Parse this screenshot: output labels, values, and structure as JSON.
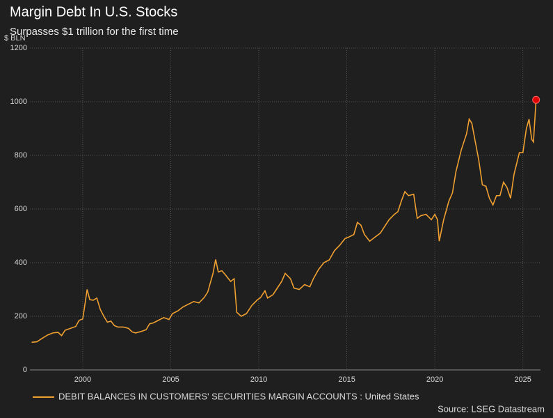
{
  "chart_data": {
    "type": "line",
    "title": "Margin Debt In U.S. Stocks",
    "subtitle": "Surpasses $1 trillion for the first time",
    "y_label": "$ BLN",
    "source": "Source: LSEG Datastream",
    "xlim": [
      1997,
      2026
    ],
    "xticks": [
      2000,
      2005,
      2010,
      2015,
      2020,
      2025
    ],
    "ylim": [
      0,
      1200
    ],
    "yticks": [
      0,
      200,
      400,
      600,
      800,
      1000,
      1200
    ],
    "grid": true,
    "marker_color": "#e00000",
    "x": [
      1997.1,
      1997.4,
      1997.7,
      1998.0,
      1998.3,
      1998.6,
      1998.8,
      1999.0,
      1999.3,
      1999.6,
      1999.8,
      2000.0,
      2000.15,
      2000.25,
      2000.4,
      2000.6,
      2000.8,
      2001.0,
      2001.2,
      2001.4,
      2001.6,
      2001.8,
      2002.0,
      2002.3,
      2002.6,
      2002.8,
      2003.0,
      2003.3,
      2003.6,
      2003.8,
      2004.0,
      2004.3,
      2004.6,
      2004.9,
      2005.1,
      2005.4,
      2005.7,
      2006.0,
      2006.3,
      2006.6,
      2006.9,
      2007.1,
      2007.4,
      2007.55,
      2007.7,
      2007.9,
      2008.1,
      2008.4,
      2008.6,
      2008.75,
      2009.0,
      2009.3,
      2009.6,
      2009.9,
      2010.1,
      2010.35,
      2010.5,
      2010.8,
      2011.0,
      2011.3,
      2011.5,
      2011.8,
      2012.0,
      2012.3,
      2012.6,
      2012.9,
      2013.1,
      2013.4,
      2013.7,
      2014.0,
      2014.3,
      2014.6,
      2014.9,
      2015.1,
      2015.4,
      2015.6,
      2015.8,
      2016.0,
      2016.3,
      2016.6,
      2016.9,
      2017.1,
      2017.4,
      2017.7,
      2017.9,
      2018.1,
      2018.3,
      2018.5,
      2018.8,
      2019.0,
      2019.2,
      2019.5,
      2019.8,
      2020.0,
      2020.15,
      2020.25,
      2020.5,
      2020.8,
      2021.0,
      2021.2,
      2021.5,
      2021.8,
      2021.95,
      2022.1,
      2022.3,
      2022.5,
      2022.7,
      2022.9,
      2023.1,
      2023.3,
      2023.5,
      2023.7,
      2023.9,
      2024.1,
      2024.3,
      2024.5,
      2024.8,
      2025.0,
      2025.2,
      2025.35,
      2025.5,
      2025.6,
      2025.75
    ],
    "series": [
      {
        "name": "DEBIT BALANCES IN CUSTOMERS' SECURITIES MARGIN ACCOUNTS : United States",
        "color": "#f0a030",
        "values": [
          103,
          105,
          118,
          130,
          138,
          140,
          128,
          148,
          155,
          162,
          185,
          190,
          255,
          300,
          262,
          260,
          268,
          225,
          200,
          178,
          182,
          165,
          160,
          160,
          155,
          142,
          138,
          143,
          150,
          172,
          175,
          185,
          195,
          188,
          210,
          220,
          235,
          245,
          255,
          250,
          270,
          290,
          360,
          412,
          365,
          370,
          355,
          330,
          340,
          215,
          200,
          210,
          240,
          260,
          270,
          295,
          268,
          280,
          300,
          330,
          360,
          340,
          305,
          300,
          318,
          310,
          340,
          375,
          400,
          410,
          445,
          465,
          490,
          495,
          505,
          550,
          540,
          505,
          480,
          495,
          510,
          530,
          560,
          580,
          590,
          630,
          665,
          650,
          655,
          565,
          575,
          580,
          560,
          580,
          560,
          480,
          560,
          630,
          660,
          740,
          820,
          880,
          935,
          920,
          850,
          780,
          690,
          685,
          640,
          615,
          650,
          650,
          700,
          680,
          640,
          730,
          810,
          810,
          900,
          935,
          860,
          850,
          1007
        ]
      }
    ]
  }
}
